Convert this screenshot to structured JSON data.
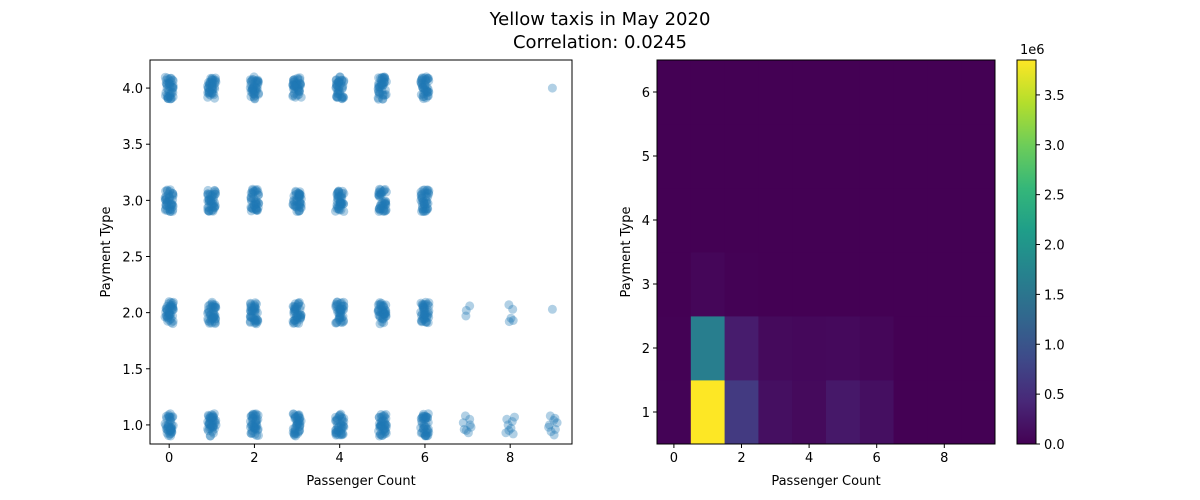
{
  "figure": {
    "title_line1": "Yellow taxis in May 2020",
    "title_line2": "Correlation: 0.0245"
  },
  "chart_data": [
    {
      "type": "scatter",
      "xlabel": "Passenger Count",
      "ylabel": "Payment Type",
      "xlim": [
        -0.45,
        9.45
      ],
      "ylim": [
        0.83,
        4.25
      ],
      "xticks": [
        "0",
        "2",
        "4",
        "6",
        "8"
      ],
      "xtick_values": [
        0,
        2,
        4,
        6,
        8
      ],
      "yticks": [
        "1.0",
        "1.5",
        "2.0",
        "2.5",
        "3.0",
        "3.5",
        "4.0"
      ],
      "ytick_values": [
        1.0,
        1.5,
        2.0,
        2.5,
        3.0,
        3.5,
        4.0
      ],
      "color": "#1f77b4",
      "point_alpha": 0.35,
      "jitter_half_width": 0.1,
      "dense_clusters": [
        {
          "x": 0,
          "y": 1
        },
        {
          "x": 1,
          "y": 1
        },
        {
          "x": 2,
          "y": 1
        },
        {
          "x": 3,
          "y": 1
        },
        {
          "x": 4,
          "y": 1
        },
        {
          "x": 5,
          "y": 1
        },
        {
          "x": 6,
          "y": 1
        },
        {
          "x": 0,
          "y": 2
        },
        {
          "x": 1,
          "y": 2
        },
        {
          "x": 2,
          "y": 2
        },
        {
          "x": 3,
          "y": 2
        },
        {
          "x": 4,
          "y": 2
        },
        {
          "x": 5,
          "y": 2
        },
        {
          "x": 6,
          "y": 2
        },
        {
          "x": 0,
          "y": 3
        },
        {
          "x": 1,
          "y": 3
        },
        {
          "x": 2,
          "y": 3
        },
        {
          "x": 3,
          "y": 3
        },
        {
          "x": 4,
          "y": 3
        },
        {
          "x": 5,
          "y": 3
        },
        {
          "x": 6,
          "y": 3
        },
        {
          "x": 0,
          "y": 4
        },
        {
          "x": 1,
          "y": 4
        },
        {
          "x": 2,
          "y": 4
        },
        {
          "x": 3,
          "y": 4
        },
        {
          "x": 4,
          "y": 4
        },
        {
          "x": 5,
          "y": 4
        },
        {
          "x": 6,
          "y": 4
        }
      ],
      "sparse_points": [
        {
          "x": 6.95,
          "y": 1.08
        },
        {
          "x": 7.05,
          "y": 1.05
        },
        {
          "x": 6.9,
          "y": 1.02
        },
        {
          "x": 7.08,
          "y": 0.98
        },
        {
          "x": 6.97,
          "y": 0.95
        },
        {
          "x": 7.02,
          "y": 0.93
        },
        {
          "x": 6.92,
          "y": 0.96
        },
        {
          "x": 7.06,
          "y": 1.0
        },
        {
          "x": 7.92,
          "y": 1.05
        },
        {
          "x": 8.05,
          "y": 1.03
        },
        {
          "x": 8.1,
          "y": 1.07
        },
        {
          "x": 7.95,
          "y": 1.0
        },
        {
          "x": 8.02,
          "y": 0.97
        },
        {
          "x": 7.9,
          "y": 0.93
        },
        {
          "x": 8.07,
          "y": 0.92
        },
        {
          "x": 7.97,
          "y": 0.95
        },
        {
          "x": 8.94,
          "y": 1.08
        },
        {
          "x": 9.05,
          "y": 1.06
        },
        {
          "x": 9.1,
          "y": 1.02
        },
        {
          "x": 8.92,
          "y": 1.0
        },
        {
          "x": 9.02,
          "y": 1.04
        },
        {
          "x": 9.06,
          "y": 0.96
        },
        {
          "x": 8.96,
          "y": 0.94
        },
        {
          "x": 9.03,
          "y": 0.91
        },
        {
          "x": 8.9,
          "y": 0.98
        },
        {
          "x": 7.05,
          "y": 2.06
        },
        {
          "x": 6.97,
          "y": 2.02
        },
        {
          "x": 6.96,
          "y": 1.97
        },
        {
          "x": 7.97,
          "y": 2.07
        },
        {
          "x": 8.06,
          "y": 2.03
        },
        {
          "x": 8.02,
          "y": 1.95
        },
        {
          "x": 8.07,
          "y": 1.93
        },
        {
          "x": 7.98,
          "y": 1.92
        },
        {
          "x": 8.99,
          "y": 2.03
        },
        {
          "x": 8.99,
          "y": 4.0
        }
      ]
    },
    {
      "type": "heatmap",
      "xlabel": "Passenger Count",
      "ylabel": "Payment Type",
      "xlim": [
        -0.5,
        9.5
      ],
      "ylim": [
        0.5,
        6.5
      ],
      "xticks": [
        "0",
        "2",
        "4",
        "6",
        "8"
      ],
      "xtick_values": [
        0,
        2,
        4,
        6,
        8
      ],
      "yticks": [
        "1",
        "2",
        "3",
        "4",
        "5",
        "6"
      ],
      "ytick_values": [
        1,
        2,
        3,
        4,
        5,
        6
      ],
      "colormap": "viridis",
      "x_bins": [
        0,
        1,
        2,
        3,
        4,
        5,
        6,
        7,
        8,
        9
      ],
      "y_bins": [
        1,
        2,
        3,
        4,
        5,
        6
      ],
      "values": [
        [
          20000,
          3850000,
          650000,
          150000,
          100000,
          250000,
          150000,
          50,
          50,
          50
        ],
        [
          10000,
          1650000,
          300000,
          100000,
          80000,
          90000,
          60000,
          5,
          5,
          5
        ],
        [
          1000,
          60000,
          15000,
          5000,
          3000,
          3000,
          2000,
          0,
          0,
          0
        ],
        [
          100,
          5000,
          1500,
          500,
          300,
          300,
          200,
          0,
          0,
          5
        ],
        [
          0,
          0,
          0,
          0,
          0,
          0,
          0,
          0,
          0,
          0
        ],
        [
          0,
          0,
          0,
          0,
          0,
          0,
          0,
          0,
          0,
          0
        ]
      ],
      "colorbar": {
        "vmin": 0,
        "vmax": 3850000,
        "ticks": [
          "0.0",
          "0.5",
          "1.0",
          "1.5",
          "2.0",
          "2.5",
          "3.0",
          "3.5"
        ],
        "tick_values": [
          0,
          500000,
          1000000,
          1500000,
          2000000,
          2500000,
          3000000,
          3500000
        ],
        "scale_label": "1e6"
      }
    }
  ]
}
